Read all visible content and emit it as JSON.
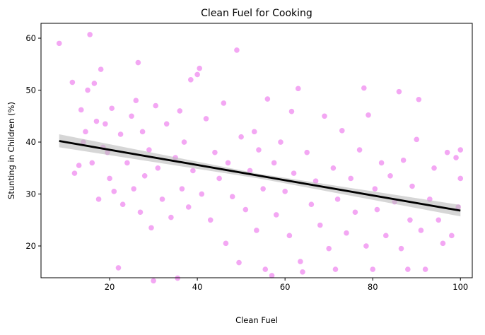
{
  "chart_data": {
    "type": "scatter",
    "title": "Clean Fuel for Cooking",
    "x_label": "Clean Fuel",
    "y_label": "Stunting in Children (%)",
    "x": [
      8.5,
      11.5,
      12,
      13,
      13.5,
      14,
      14.5,
      15,
      15.5,
      16,
      16.5,
      17,
      17.5,
      18,
      18.5,
      19,
      19.5,
      20,
      20.5,
      21,
      22,
      22.5,
      23,
      24,
      25,
      25.5,
      26,
      26.5,
      27,
      27.5,
      28,
      29,
      29.5,
      30,
      30.5,
      31,
      32,
      33,
      34,
      35,
      35.5,
      36,
      36.5,
      37,
      38,
      38.5,
      39,
      40,
      40.5,
      41,
      42,
      43,
      44,
      45,
      46,
      46.5,
      47,
      48,
      49,
      49.5,
      50,
      51,
      52,
      53,
      53.5,
      54,
      55,
      55.5,
      56,
      57,
      57.5,
      58,
      59,
      60,
      61,
      61.5,
      62,
      63,
      63.5,
      64,
      65,
      66,
      67,
      68,
      69,
      70,
      71,
      71.5,
      72,
      73,
      74,
      75,
      76,
      77,
      78,
      78.5,
      79,
      80,
      80.5,
      81,
      82,
      83,
      84,
      85,
      86,
      86.5,
      87,
      88,
      88.5,
      89,
      90,
      90.5,
      91,
      92,
      93,
      94,
      95,
      96,
      97,
      98,
      99,
      99.5,
      100,
      100
    ],
    "values": [
      59,
      51.5,
      34,
      35.5,
      46.2,
      40,
      42,
      50,
      60.7,
      36,
      51.3,
      44,
      29,
      54,
      39,
      43.5,
      38,
      33,
      46.5,
      30.5,
      15.8,
      41.5,
      28,
      36,
      45,
      31,
      48,
      55.3,
      26.5,
      42,
      33.5,
      38.5,
      23.5,
      13.3,
      47,
      35,
      29,
      43.5,
      25.5,
      37,
      13.8,
      46,
      31,
      40,
      27.5,
      52,
      34.5,
      53,
      54.2,
      30,
      44.5,
      25,
      38,
      33,
      47.5,
      20.5,
      36,
      29.5,
      57.7,
      16.8,
      41,
      27,
      34.5,
      42,
      23,
      38.5,
      31,
      15.5,
      48.3,
      14.3,
      36,
      26,
      40,
      30.5,
      22,
      45.9,
      34,
      50.3,
      17,
      15,
      38,
      28,
      32.5,
      24,
      45,
      19.5,
      35,
      15.5,
      29,
      42.2,
      22.5,
      33,
      26.5,
      38.5,
      50.4,
      20,
      45.2,
      15.5,
      31,
      27,
      36,
      22,
      33.5,
      28.5,
      49.7,
      19.5,
      36.5,
      15.5,
      25,
      31.5,
      40.5,
      48.2,
      23,
      15.5,
      29,
      35,
      25,
      20.5,
      38,
      22,
      37,
      27.5,
      38.5,
      33
    ],
    "color": "#ee82ee",
    "trend_line": {
      "x": [
        8.5,
        100
      ],
      "values": [
        40.2,
        26.8
      ],
      "color": "#000000"
    },
    "confidence_band": {
      "x": [
        8.5,
        54,
        100
      ],
      "lower": [
        39.0,
        33.0,
        25.7
      ],
      "upper": [
        41.5,
        33.9,
        27.9
      ],
      "color": "#bbbbbb"
    },
    "xlim": [
      4.35,
      102.7
    ],
    "ylim": [
      13.88,
      62.86
    ],
    "xticks": [
      20,
      40,
      60,
      80,
      100
    ],
    "yticks": [
      20,
      30,
      40,
      50,
      60
    ],
    "grid": false
  }
}
